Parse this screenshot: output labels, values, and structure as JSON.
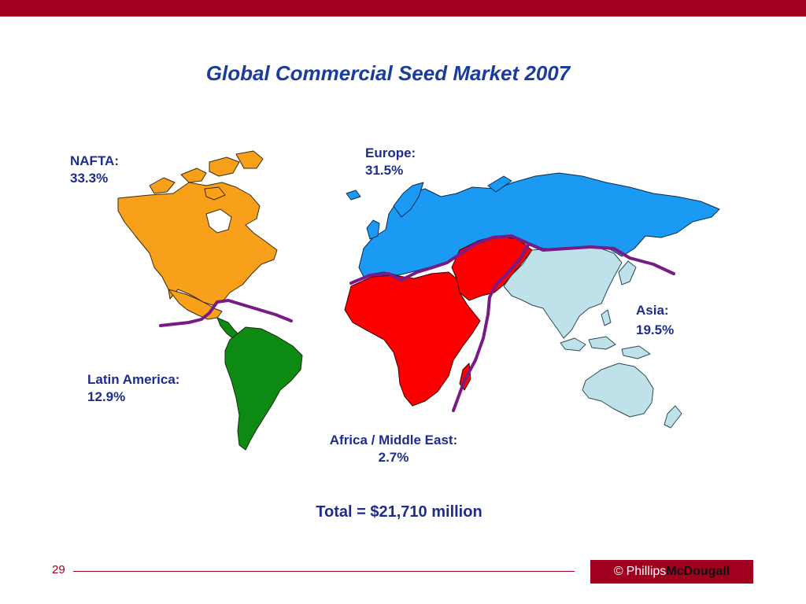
{
  "title": "Global Commercial Seed Market 2007",
  "regions": {
    "nafta": {
      "name": "NAFTA:",
      "share": "33.3%",
      "color": "#f9a01b"
    },
    "europe": {
      "name": "Europe:",
      "share": "31.5%",
      "color": "#1a9af2"
    },
    "asia": {
      "name": "Asia:",
      "share": "19.5%",
      "color": "#bfe2ea"
    },
    "latin_america": {
      "name": "Latin America:",
      "share": "12.9%",
      "color": "#0d8a12"
    },
    "africa_middle_east": {
      "name": "Africa / Middle East:",
      "share": "2.7%",
      "color": "#fb0000"
    }
  },
  "boundary_color": "#7a1a86",
  "total": "Total = $21,710 million",
  "footer": {
    "page_number": "29",
    "brand_copyright": "©",
    "brand_first": "Phillips",
    "brand_second": "McDougall",
    "accent_color": "#a0001e"
  }
}
